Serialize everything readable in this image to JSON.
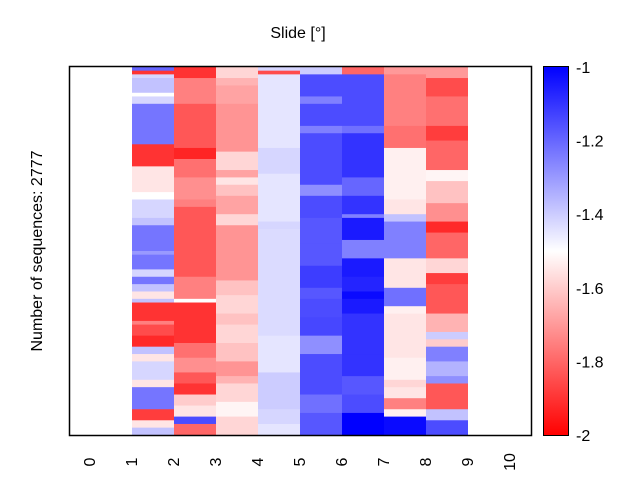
{
  "chart_data": {
    "type": "heatmap",
    "title": "Slide [°]",
    "xlabel": "",
    "ylabel": "Number of sequences: 2777",
    "n_sequences": 2777,
    "x_ticks": [
      "0",
      "1",
      "2",
      "3",
      "4",
      "5",
      "6",
      "7",
      "8",
      "9",
      "10"
    ],
    "xlim": [
      0,
      10
    ],
    "colorbar": {
      "range": [
        -2,
        -1
      ],
      "ticks": [
        "-1",
        "-1.2",
        "-1.4",
        "-1.6",
        "-1.8",
        "-2"
      ],
      "tick_values": [
        -1,
        -1.2,
        -1.4,
        -1.6,
        -1.8,
        -2
      ],
      "colormap": [
        "#ff0000",
        "#ffffff",
        "#0000ff"
      ],
      "colormap_stops": [
        -2,
        -1.5,
        -1
      ]
    },
    "columns": [
      {
        "slide": 1,
        "segments": [
          [
            0.0,
            0.01,
            -1.2
          ],
          [
            0.01,
            0.02,
            -1.9
          ],
          [
            0.02,
            0.03,
            -1.42
          ],
          [
            0.03,
            0.07,
            -1.38
          ],
          [
            0.07,
            0.08,
            -1.5
          ],
          [
            0.08,
            0.1,
            -1.42
          ],
          [
            0.1,
            0.21,
            -1.23
          ],
          [
            0.21,
            0.27,
            -1.9
          ],
          [
            0.27,
            0.34,
            -1.55
          ],
          [
            0.34,
            0.36,
            -1.5
          ],
          [
            0.36,
            0.38,
            -1.42
          ],
          [
            0.38,
            0.41,
            -1.42
          ],
          [
            0.41,
            0.43,
            -1.38
          ],
          [
            0.43,
            0.46,
            -1.23
          ],
          [
            0.46,
            0.5,
            -1.23
          ],
          [
            0.5,
            0.51,
            -1.3
          ],
          [
            0.51,
            0.55,
            -1.23
          ],
          [
            0.55,
            0.57,
            -1.42
          ],
          [
            0.57,
            0.59,
            -1.23
          ],
          [
            0.59,
            0.61,
            -1.38
          ],
          [
            0.61,
            0.63,
            -1.55
          ],
          [
            0.63,
            0.64,
            -1.38
          ],
          [
            0.64,
            0.69,
            -1.9
          ],
          [
            0.69,
            0.7,
            -1.75
          ],
          [
            0.7,
            0.73,
            -1.85
          ],
          [
            0.73,
            0.76,
            -1.92
          ],
          [
            0.76,
            0.78,
            -1.38
          ],
          [
            0.78,
            0.8,
            -1.55
          ],
          [
            0.8,
            0.85,
            -1.42
          ],
          [
            0.85,
            0.87,
            -1.55
          ],
          [
            0.87,
            0.93,
            -1.23
          ],
          [
            0.93,
            0.96,
            -1.88
          ],
          [
            0.96,
            0.98,
            -1.55
          ],
          [
            0.98,
            1.0,
            -1.38
          ]
        ]
      },
      {
        "slide": 2,
        "segments": [
          [
            0.0,
            0.03,
            -1.9
          ],
          [
            0.03,
            0.1,
            -1.75
          ],
          [
            0.1,
            0.22,
            -1.83
          ],
          [
            0.22,
            0.25,
            -1.93
          ],
          [
            0.25,
            0.3,
            -1.78
          ],
          [
            0.3,
            0.36,
            -1.72
          ],
          [
            0.36,
            0.38,
            -1.75
          ],
          [
            0.38,
            0.57,
            -1.83
          ],
          [
            0.57,
            0.63,
            -1.75
          ],
          [
            0.63,
            0.64,
            -1.5
          ],
          [
            0.64,
            0.75,
            -1.9
          ],
          [
            0.75,
            0.79,
            -1.78
          ],
          [
            0.79,
            0.83,
            -1.72
          ],
          [
            0.83,
            0.86,
            -1.83
          ],
          [
            0.86,
            0.89,
            -1.9
          ],
          [
            0.89,
            0.92,
            -1.6
          ],
          [
            0.92,
            0.95,
            -1.55
          ],
          [
            0.95,
            0.97,
            -1.15
          ],
          [
            0.97,
            1.0,
            -1.8
          ]
        ]
      },
      {
        "slide": 3,
        "segments": [
          [
            0.0,
            0.03,
            -1.58
          ],
          [
            0.03,
            0.05,
            -1.65
          ],
          [
            0.05,
            0.1,
            -1.68
          ],
          [
            0.1,
            0.23,
            -1.71
          ],
          [
            0.23,
            0.28,
            -1.58
          ],
          [
            0.28,
            0.3,
            -1.68
          ],
          [
            0.3,
            0.32,
            -1.55
          ],
          [
            0.32,
            0.35,
            -1.62
          ],
          [
            0.35,
            0.4,
            -1.68
          ],
          [
            0.4,
            0.43,
            -1.58
          ],
          [
            0.43,
            0.58,
            -1.71
          ],
          [
            0.58,
            0.62,
            -1.62
          ],
          [
            0.62,
            0.67,
            -1.58
          ],
          [
            0.67,
            0.7,
            -1.62
          ],
          [
            0.7,
            0.75,
            -1.58
          ],
          [
            0.75,
            0.8,
            -1.62
          ],
          [
            0.8,
            0.84,
            -1.71
          ],
          [
            0.84,
            0.86,
            -1.65
          ],
          [
            0.86,
            0.91,
            -1.58
          ],
          [
            0.91,
            0.95,
            -1.52
          ],
          [
            0.95,
            1.0,
            -1.58
          ]
        ]
      },
      {
        "slide": 4,
        "segments": [
          [
            0.0,
            0.01,
            -1.42
          ],
          [
            0.01,
            0.02,
            -1.85
          ],
          [
            0.02,
            0.22,
            -1.45
          ],
          [
            0.22,
            0.24,
            -1.42
          ],
          [
            0.24,
            0.29,
            -1.42
          ],
          [
            0.29,
            0.42,
            -1.45
          ],
          [
            0.42,
            0.44,
            -1.42
          ],
          [
            0.44,
            0.73,
            -1.43
          ],
          [
            0.73,
            0.79,
            -1.45
          ],
          [
            0.79,
            0.83,
            -1.45
          ],
          [
            0.83,
            0.93,
            -1.4
          ],
          [
            0.93,
            0.97,
            -1.42
          ],
          [
            0.97,
            1.0,
            -1.45
          ]
        ]
      },
      {
        "slide": 5,
        "segments": [
          [
            0.0,
            0.02,
            -1.4
          ],
          [
            0.02,
            0.08,
            -1.15
          ],
          [
            0.08,
            0.1,
            -1.25
          ],
          [
            0.1,
            0.16,
            -1.15
          ],
          [
            0.16,
            0.18,
            -1.25
          ],
          [
            0.18,
            0.32,
            -1.15
          ],
          [
            0.32,
            0.35,
            -1.28
          ],
          [
            0.35,
            0.41,
            -1.15
          ],
          [
            0.41,
            0.48,
            -1.17
          ],
          [
            0.48,
            0.54,
            -1.17
          ],
          [
            0.54,
            0.6,
            -1.12
          ],
          [
            0.6,
            0.63,
            -1.17
          ],
          [
            0.63,
            0.68,
            -1.15
          ],
          [
            0.68,
            0.73,
            -1.14
          ],
          [
            0.73,
            0.78,
            -1.28
          ],
          [
            0.78,
            0.84,
            -1.15
          ],
          [
            0.84,
            0.89,
            -1.15
          ],
          [
            0.89,
            0.94,
            -1.22
          ],
          [
            0.94,
            1.0,
            -1.17
          ]
        ]
      },
      {
        "slide": 6,
        "segments": [
          [
            0.0,
            0.02,
            -1.8
          ],
          [
            0.02,
            0.16,
            -1.15
          ],
          [
            0.16,
            0.18,
            -1.22
          ],
          [
            0.18,
            0.3,
            -1.1
          ],
          [
            0.3,
            0.35,
            -1.2
          ],
          [
            0.35,
            0.4,
            -1.1
          ],
          [
            0.4,
            0.41,
            -1.25
          ],
          [
            0.41,
            0.47,
            -1.05
          ],
          [
            0.47,
            0.52,
            -1.25
          ],
          [
            0.52,
            0.57,
            -1.05
          ],
          [
            0.57,
            0.61,
            -1.07
          ],
          [
            0.61,
            0.63,
            -1.02
          ],
          [
            0.63,
            0.67,
            -1.05
          ],
          [
            0.67,
            0.7,
            -1.1
          ],
          [
            0.7,
            0.78,
            -1.1
          ],
          [
            0.78,
            0.84,
            -1.1
          ],
          [
            0.84,
            0.89,
            -1.17
          ],
          [
            0.89,
            0.94,
            -1.15
          ],
          [
            0.94,
            1.0,
            -1.0
          ]
        ]
      },
      {
        "slide": 7,
        "segments": [
          [
            0.0,
            0.02,
            -1.7
          ],
          [
            0.02,
            0.16,
            -1.75
          ],
          [
            0.16,
            0.22,
            -1.78
          ],
          [
            0.22,
            0.36,
            -1.53
          ],
          [
            0.36,
            0.4,
            -1.55
          ],
          [
            0.4,
            0.42,
            -1.38
          ],
          [
            0.42,
            0.52,
            -1.25
          ],
          [
            0.52,
            0.6,
            -1.55
          ],
          [
            0.6,
            0.65,
            -1.22
          ],
          [
            0.65,
            0.67,
            -1.53
          ],
          [
            0.67,
            0.79,
            -1.55
          ],
          [
            0.79,
            0.85,
            -1.53
          ],
          [
            0.85,
            0.87,
            -1.58
          ],
          [
            0.87,
            0.9,
            -1.55
          ],
          [
            0.9,
            0.93,
            -1.75
          ],
          [
            0.93,
            0.95,
            -1.53
          ],
          [
            0.95,
            1.0,
            -1.02
          ]
        ]
      },
      {
        "slide": 8,
        "segments": [
          [
            0.0,
            0.03,
            -1.7
          ],
          [
            0.03,
            0.08,
            -1.85
          ],
          [
            0.08,
            0.16,
            -1.78
          ],
          [
            0.16,
            0.2,
            -1.88
          ],
          [
            0.2,
            0.28,
            -1.8
          ],
          [
            0.28,
            0.31,
            -1.52
          ],
          [
            0.31,
            0.37,
            -1.62
          ],
          [
            0.37,
            0.42,
            -1.72
          ],
          [
            0.42,
            0.45,
            -1.92
          ],
          [
            0.45,
            0.52,
            -1.8
          ],
          [
            0.52,
            0.56,
            -1.58
          ],
          [
            0.56,
            0.59,
            -1.88
          ],
          [
            0.59,
            0.67,
            -1.83
          ],
          [
            0.67,
            0.72,
            -1.65
          ],
          [
            0.72,
            0.74,
            -1.4
          ],
          [
            0.74,
            0.76,
            -1.6
          ],
          [
            0.76,
            0.8,
            -1.25
          ],
          [
            0.8,
            0.84,
            -1.35
          ],
          [
            0.84,
            0.86,
            -1.28
          ],
          [
            0.86,
            0.93,
            -1.83
          ],
          [
            0.93,
            0.96,
            -1.38
          ],
          [
            0.96,
            1.0,
            -1.15
          ]
        ]
      }
    ]
  }
}
